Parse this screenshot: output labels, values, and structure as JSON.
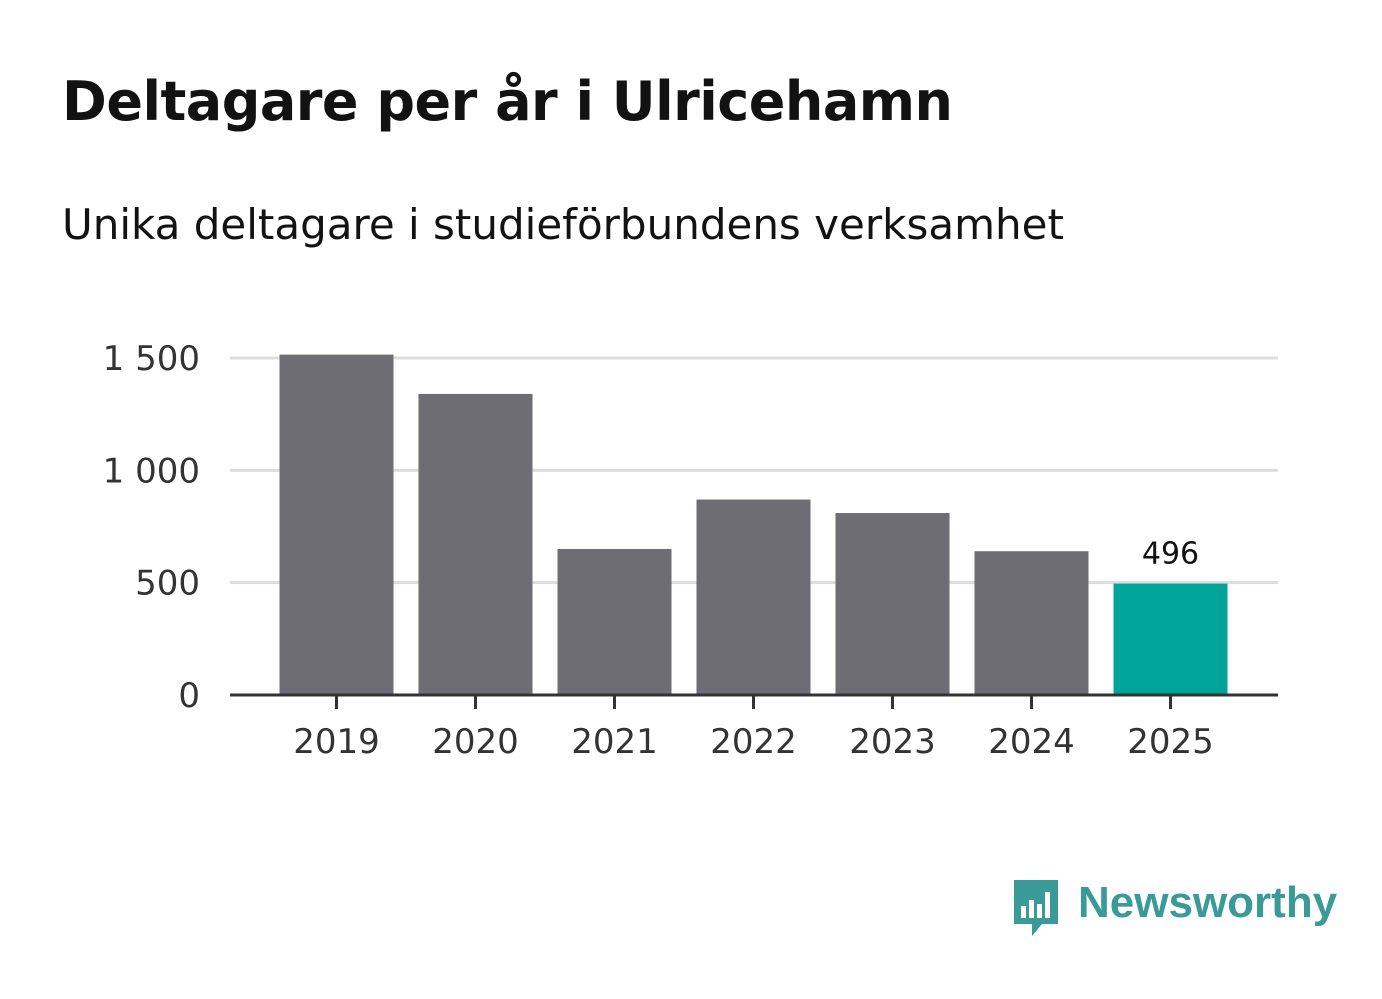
{
  "title": "Deltagare per år i Ulricehamn",
  "subtitle": "Unika deltagare i studieförbundens verksamhet",
  "brand": {
    "name": "Newsworthy",
    "icon": "newsworthy-logo-icon",
    "color": "#3a9a97"
  },
  "colors": {
    "bar": "#6e6d73",
    "highlight": "#00a499",
    "grid": "#dddddd",
    "axis": "#333333"
  },
  "chart_data": {
    "type": "bar",
    "title": "Deltagare per år i Ulricehamn",
    "subtitle": "Unika deltagare i studieförbundens verksamhet",
    "categories": [
      "2019",
      "2020",
      "2021",
      "2022",
      "2023",
      "2024",
      "2025"
    ],
    "values": [
      1515,
      1340,
      650,
      870,
      810,
      640,
      496
    ],
    "highlight_index": 6,
    "data_labels": [
      {
        "index": 6,
        "text": "496"
      }
    ],
    "yticks": [
      0,
      500,
      1000,
      1500
    ],
    "ytick_labels": [
      "0",
      "500",
      "1 000",
      "1 500"
    ],
    "ylim": [
      0,
      1500
    ],
    "xlabel": "",
    "ylabel": "",
    "grid": true
  }
}
